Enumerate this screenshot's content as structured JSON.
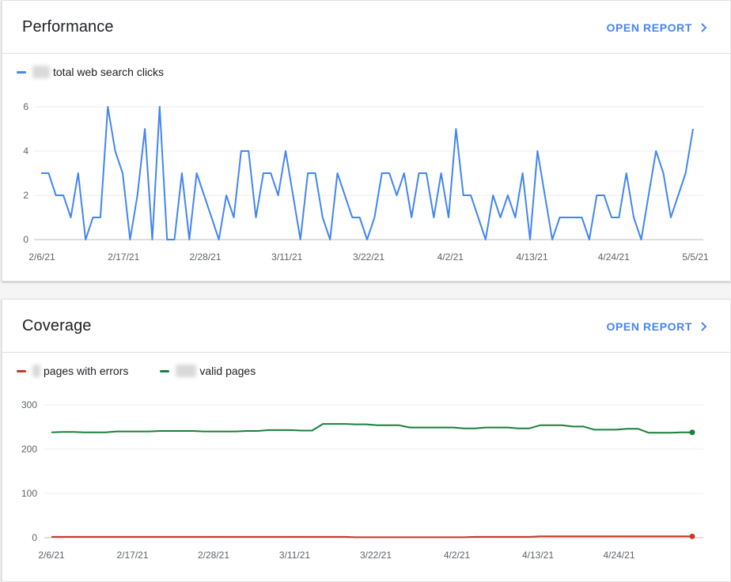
{
  "performance": {
    "title": "Performance",
    "open_report": "OPEN REPORT",
    "legend": [
      {
        "label": "total web search clicks",
        "color": "#4285f4"
      }
    ],
    "chart_data": {
      "type": "line",
      "x": [
        "2/6/21",
        "2/7/21",
        "2/8/21",
        "2/9/21",
        "2/10/21",
        "2/11/21",
        "2/12/21",
        "2/13/21",
        "2/14/21",
        "2/15/21",
        "2/16/21",
        "2/17/21",
        "2/18/21",
        "2/19/21",
        "2/20/21",
        "2/21/21",
        "2/22/21",
        "2/23/21",
        "2/24/21",
        "2/25/21",
        "2/26/21",
        "2/27/21",
        "2/28/21",
        "3/1/21",
        "3/2/21",
        "3/3/21",
        "3/4/21",
        "3/5/21",
        "3/6/21",
        "3/7/21",
        "3/8/21",
        "3/9/21",
        "3/10/21",
        "3/11/21",
        "3/12/21",
        "3/13/21",
        "3/14/21",
        "3/15/21",
        "3/16/21",
        "3/17/21",
        "3/18/21",
        "3/19/21",
        "3/20/21",
        "3/21/21",
        "3/22/21",
        "3/23/21",
        "3/24/21",
        "3/25/21",
        "3/26/21",
        "3/27/21",
        "3/28/21",
        "3/29/21",
        "3/30/21",
        "3/31/21",
        "4/1/21",
        "4/2/21",
        "4/3/21",
        "4/4/21",
        "4/5/21",
        "4/6/21",
        "4/7/21",
        "4/8/21",
        "4/9/21",
        "4/10/21",
        "4/11/21",
        "4/12/21",
        "4/13/21",
        "4/14/21",
        "4/15/21",
        "4/16/21",
        "4/17/21",
        "4/18/21",
        "4/19/21",
        "4/20/21",
        "4/21/21",
        "4/22/21",
        "4/23/21",
        "4/24/21",
        "4/25/21",
        "4/26/21",
        "4/27/21",
        "4/28/21",
        "4/29/21",
        "4/30/21",
        "5/1/21",
        "5/2/21",
        "5/3/21",
        "5/4/21",
        "5/5/21"
      ],
      "series": [
        {
          "name": "total web search clicks",
          "color": "#4285f4",
          "values": [
            3,
            3,
            2,
            2,
            1,
            3,
            0,
            1,
            1,
            6,
            4,
            3,
            0,
            2,
            5,
            0,
            6,
            0,
            0,
            3,
            0,
            3,
            2,
            1,
            0,
            2,
            1,
            4,
            4,
            1,
            3,
            3,
            2,
            4,
            2,
            0,
            3,
            3,
            1,
            0,
            3,
            2,
            1,
            1,
            0,
            1,
            3,
            3,
            2,
            3,
            1,
            3,
            3,
            1,
            3,
            1,
            5,
            2,
            2,
            1,
            0,
            2,
            1,
            2,
            1,
            3,
            0,
            4,
            2,
            0,
            1,
            1,
            1,
            1,
            0,
            2,
            2,
            1,
            1,
            3,
            1,
            0,
            2,
            4,
            3,
            1,
            2,
            3,
            5
          ]
        }
      ],
      "ylim": [
        0,
        6
      ],
      "yticks": [
        0,
        2,
        4,
        6
      ],
      "xtick_labels": [
        "2/6/21",
        "2/17/21",
        "2/28/21",
        "3/11/21",
        "3/22/21",
        "4/2/21",
        "4/13/21",
        "4/24/21",
        "5/5/21"
      ],
      "grid": true
    }
  },
  "coverage": {
    "title": "Coverage",
    "open_report": "OPEN REPORT",
    "legend": [
      {
        "label": "pages with errors",
        "color": "#c5392a"
      },
      {
        "label": "valid pages",
        "color": "#188038"
      }
    ],
    "chart_data": {
      "type": "line",
      "x_start": "2/6/21",
      "x_end": "5/2/21",
      "series": [
        {
          "name": "valid pages",
          "color": "#188038",
          "values": [
            238,
            239,
            239,
            238,
            238,
            238,
            240,
            240,
            240,
            240,
            241,
            241,
            241,
            241,
            240,
            240,
            240,
            240,
            241,
            241,
            243,
            243,
            243,
            242,
            242,
            257,
            257,
            257,
            256,
            256,
            254,
            254,
            254,
            249,
            249,
            249,
            249,
            249,
            247,
            247,
            249,
            249,
            249,
            247,
            247,
            254,
            254,
            254,
            251,
            251,
            244,
            244,
            244,
            246,
            246,
            237,
            237,
            237,
            238,
            238
          ]
        },
        {
          "name": "pages with errors",
          "color": "#c5392a",
          "values": [
            2,
            2,
            2,
            2,
            2,
            2,
            2,
            2,
            2,
            2,
            2,
            2,
            2,
            2,
            2,
            2,
            2,
            2,
            2,
            2,
            2,
            2,
            2,
            2,
            2,
            2,
            2,
            2,
            1,
            1,
            1,
            1,
            1,
            1,
            1,
            1,
            1,
            1,
            1,
            2,
            2,
            2,
            2,
            2,
            2,
            3,
            3,
            3,
            3,
            3,
            3,
            3,
            3,
            3,
            3,
            3,
            3,
            3,
            3,
            3
          ]
        }
      ],
      "ylim": [
        0,
        300
      ],
      "yticks": [
        0,
        100,
        200,
        300
      ],
      "xtick_labels": [
        "2/6/21",
        "2/17/21",
        "2/28/21",
        "3/11/21",
        "3/22/21",
        "4/2/21",
        "4/13/21",
        "4/24/21"
      ],
      "grid": true
    }
  }
}
